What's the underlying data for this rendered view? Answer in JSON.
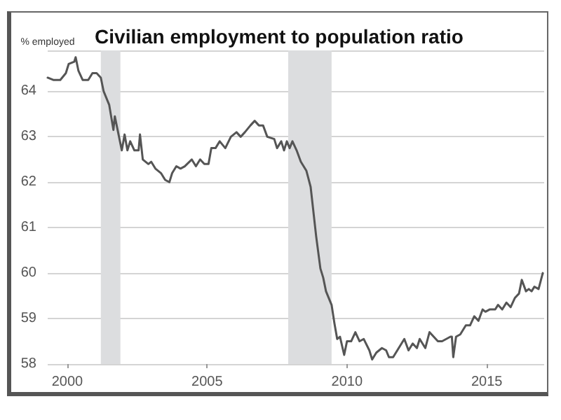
{
  "chart_data": {
    "type": "line",
    "title": "Civilian employment to population ratio",
    "ylabel": "% employed",
    "x": [
      1999.3,
      1999.5,
      1999.75,
      1999.95,
      2000.05,
      2000.25,
      2000.3,
      2000.4,
      2000.55,
      2000.75,
      2000.9,
      2001.05,
      2001.2,
      2001.3,
      2001.5,
      2001.65,
      2001.7,
      2001.85,
      2001.95,
      2002.05,
      2002.15,
      2002.25,
      2002.4,
      2002.55,
      2002.6,
      2002.7,
      2002.9,
      2003.0,
      2003.15,
      2003.35,
      2003.5,
      2003.65,
      2003.75,
      2003.9,
      2004.05,
      2004.2,
      2004.45,
      2004.6,
      2004.75,
      2004.9,
      2005.05,
      2005.15,
      2005.3,
      2005.45,
      2005.65,
      2005.85,
      2006.05,
      2006.2,
      2006.35,
      2006.55,
      2006.7,
      2006.85,
      2007.0,
      2007.15,
      2007.4,
      2007.5,
      2007.65,
      2007.75,
      2007.85,
      2007.95,
      2008.05,
      2008.2,
      2008.35,
      2008.55,
      2008.7,
      2008.9,
      2009.05,
      2009.15,
      2009.25,
      2009.45,
      2009.55,
      2009.65,
      2009.75,
      2009.9,
      2010.0,
      2010.15,
      2010.3,
      2010.45,
      2010.6,
      2010.8,
      2010.9,
      2011.05,
      2011.25,
      2011.4,
      2011.5,
      2011.65,
      2011.85,
      2012.05,
      2012.2,
      2012.35,
      2012.5,
      2012.6,
      2012.8,
      2012.95,
      2013.1,
      2013.25,
      2013.4,
      2013.55,
      2013.7,
      2013.75,
      2013.8,
      2013.9,
      2014.05,
      2014.25,
      2014.4,
      2014.55,
      2014.7,
      2014.85,
      2014.95,
      2015.1,
      2015.3,
      2015.4,
      2015.55,
      2015.7,
      2015.85,
      2016.0,
      2016.15,
      2016.25,
      2016.4,
      2016.5,
      2016.6,
      2016.7,
      2016.85,
      2017.0
    ],
    "series": [
      {
        "color": "#555555",
        "values": [
          64.3,
          64.25,
          64.25,
          64.4,
          64.6,
          64.65,
          64.75,
          64.45,
          64.25,
          64.25,
          64.4,
          64.4,
          64.3,
          64.0,
          63.7,
          63.15,
          63.45,
          63.0,
          62.7,
          63.05,
          62.7,
          62.9,
          62.7,
          62.7,
          63.05,
          62.5,
          62.4,
          62.45,
          62.3,
          62.2,
          62.05,
          62.0,
          62.2,
          62.35,
          62.3,
          62.35,
          62.5,
          62.35,
          62.5,
          62.4,
          62.4,
          62.75,
          62.75,
          62.9,
          62.75,
          63.0,
          63.1,
          63.0,
          63.1,
          63.25,
          63.35,
          63.25,
          63.25,
          63.0,
          62.95,
          62.75,
          62.9,
          62.7,
          62.9,
          62.75,
          62.9,
          62.7,
          62.45,
          62.25,
          61.9,
          60.8,
          60.1,
          59.9,
          59.6,
          59.3,
          58.9,
          58.55,
          58.6,
          58.2,
          58.5,
          58.5,
          58.7,
          58.5,
          58.55,
          58.3,
          58.1,
          58.25,
          58.35,
          58.3,
          58.15,
          58.15,
          58.35,
          58.55,
          58.3,
          58.45,
          58.35,
          58.55,
          58.35,
          58.7,
          58.6,
          58.5,
          58.5,
          58.55,
          58.6,
          58.6,
          58.15,
          58.6,
          58.65,
          58.85,
          58.85,
          59.05,
          58.95,
          59.2,
          59.15,
          59.2,
          59.2,
          59.3,
          59.2,
          59.35,
          59.25,
          59.45,
          59.55,
          59.85,
          59.6,
          59.65,
          59.6,
          59.7,
          59.65,
          60.0
        ]
      }
    ],
    "xlim": [
      1999.3,
      2017.05
    ],
    "xticks": [
      2000,
      2005,
      2010,
      2015
    ],
    "ylim": [
      58,
      64.9
    ],
    "yticks": [
      58,
      59,
      60,
      61,
      62,
      63,
      64
    ],
    "bands": [
      {
        "axis": "x",
        "from": 2001.2,
        "to": 2001.9,
        "color": "#dcdddf"
      },
      {
        "axis": "x",
        "from": 2007.9,
        "to": 2009.45,
        "color": "#dcdddf"
      }
    ],
    "grid": "y",
    "marker": "none",
    "line_style": "solid"
  }
}
